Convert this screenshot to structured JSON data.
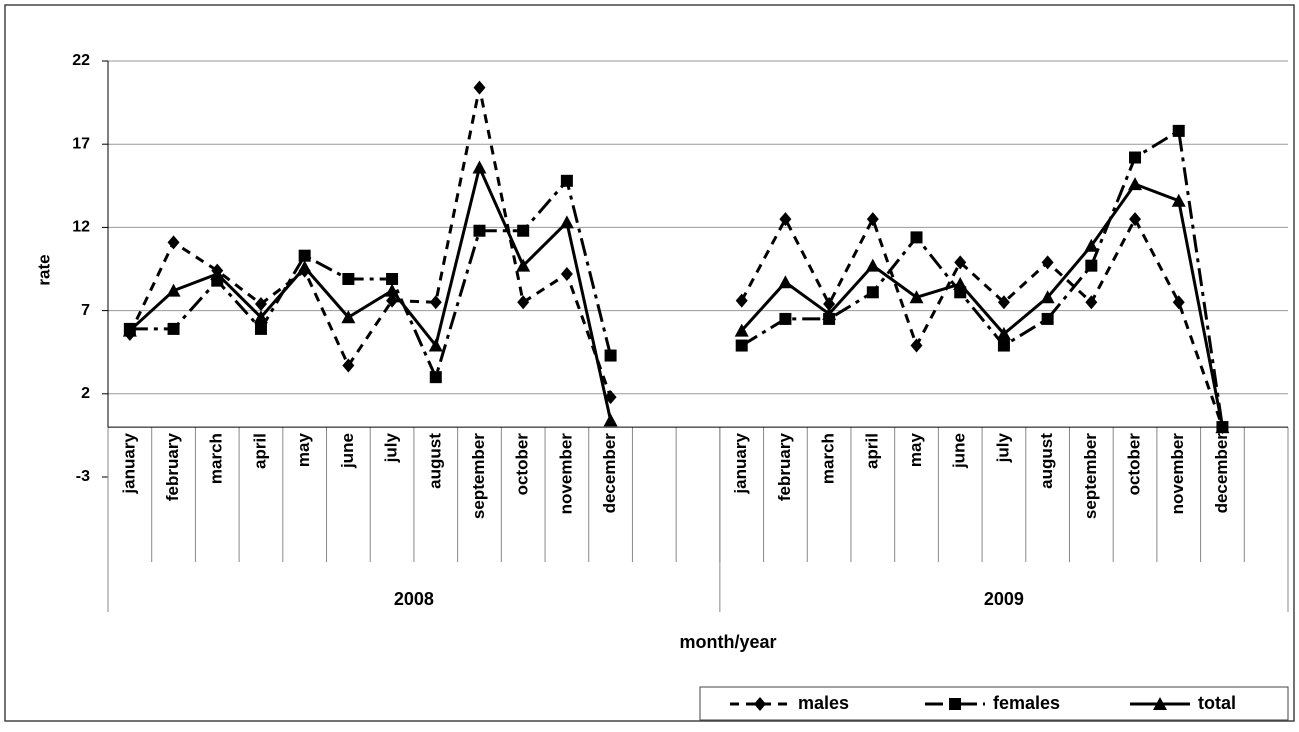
{
  "chart_data": {
    "type": "line",
    "y_label": "rate",
    "x_label": "month/year",
    "groups": [
      {
        "name": "2008",
        "categories": [
          "january",
          "february",
          "march",
          "april",
          "may",
          "june",
          "july",
          "august",
          "september",
          "october",
          "november",
          "december",
          null,
          null
        ]
      },
      {
        "name": "2009",
        "categories": [
          "january",
          "february",
          "march",
          "april",
          "may",
          "june",
          "july",
          "august",
          "september",
          "october",
          "november",
          "december",
          null
        ]
      }
    ],
    "ylim": [
      -3,
      22
    ],
    "yticks": [
      -3,
      2,
      7,
      12,
      17,
      22
    ],
    "grid": true,
    "legend": "bottom-right",
    "series": [
      {
        "name": "males",
        "color": "#000000",
        "line_style": "dotted",
        "marker": "diamond",
        "values": [
          5.6,
          11.1,
          9.4,
          7.4,
          9.4,
          3.7,
          7.6,
          7.5,
          20.4,
          7.5,
          9.2,
          1.8,
          null,
          null,
          7.6,
          12.5,
          7.4,
          12.5,
          4.9,
          9.9,
          7.5,
          9.9,
          7.5,
          12.5,
          7.5,
          0,
          null
        ]
      },
      {
        "name": "females",
        "color": "#000000",
        "line_style": "dash-dot",
        "marker": "square",
        "values": [
          5.9,
          5.9,
          8.8,
          5.9,
          10.3,
          8.9,
          8.9,
          3.0,
          11.8,
          11.8,
          14.8,
          4.3,
          null,
          null,
          4.9,
          6.5,
          6.5,
          8.1,
          11.4,
          8.1,
          4.9,
          6.5,
          9.7,
          16.2,
          17.8,
          0,
          null
        ]
      },
      {
        "name": "total",
        "color": "#000000",
        "line_style": "solid",
        "marker": "triangle",
        "values": [
          5.8,
          8.2,
          9.2,
          6.6,
          9.6,
          6.6,
          8.2,
          4.9,
          15.6,
          9.7,
          12.3,
          0.4,
          null,
          null,
          5.8,
          8.7,
          6.8,
          9.7,
          7.8,
          8.6,
          5.6,
          7.8,
          10.9,
          14.6,
          13.6,
          0,
          null
        ]
      }
    ]
  }
}
